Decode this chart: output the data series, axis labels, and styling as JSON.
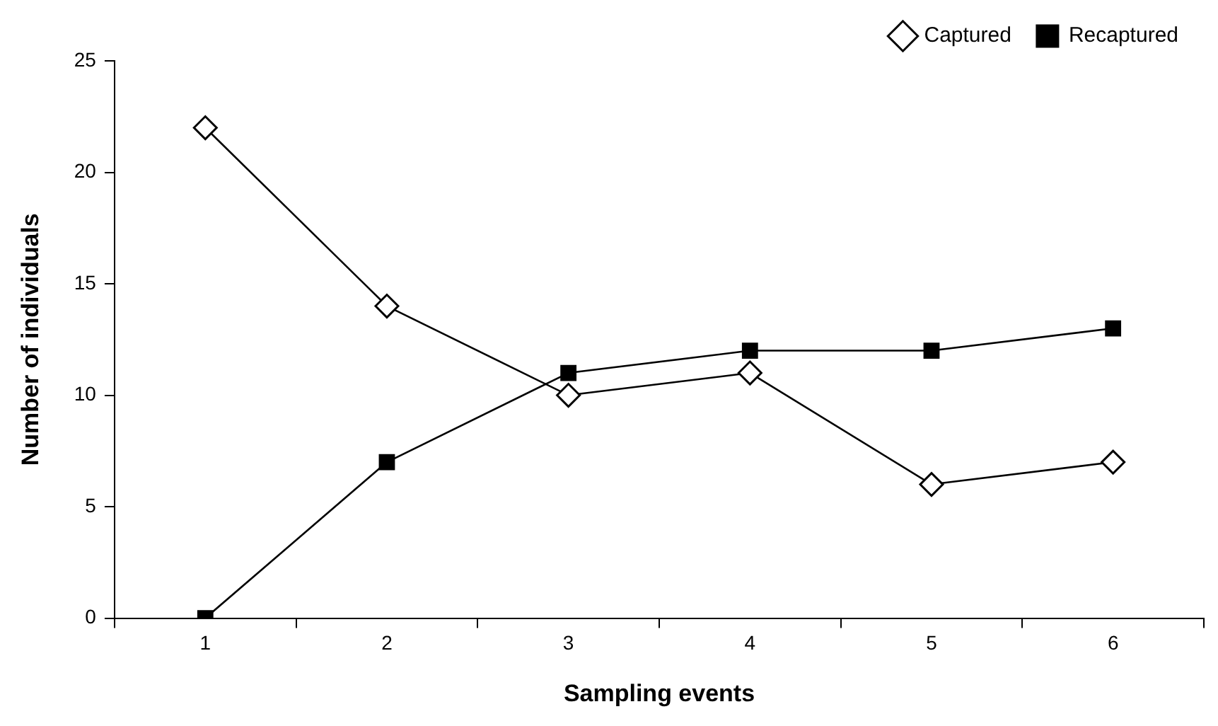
{
  "chart_data": {
    "type": "line",
    "xlabel": "Sampling events",
    "ylabel": "Number of individuals",
    "categories": [
      "1",
      "2",
      "3",
      "4",
      "5",
      "6"
    ],
    "series": [
      {
        "name": "Captured",
        "color": "#000000",
        "marker": "diamond",
        "values": [
          22,
          14,
          10,
          11,
          6,
          7
        ]
      },
      {
        "name": "Recaptured",
        "color": "#000000",
        "marker": "square",
        "values": [
          0,
          7,
          11,
          12,
          12,
          13
        ]
      }
    ],
    "ylim": [
      0,
      25
    ],
    "yticks": [
      0,
      5,
      10,
      15,
      20,
      25
    ],
    "grid": false,
    "legend": "top right",
    "line_style": "solid"
  }
}
